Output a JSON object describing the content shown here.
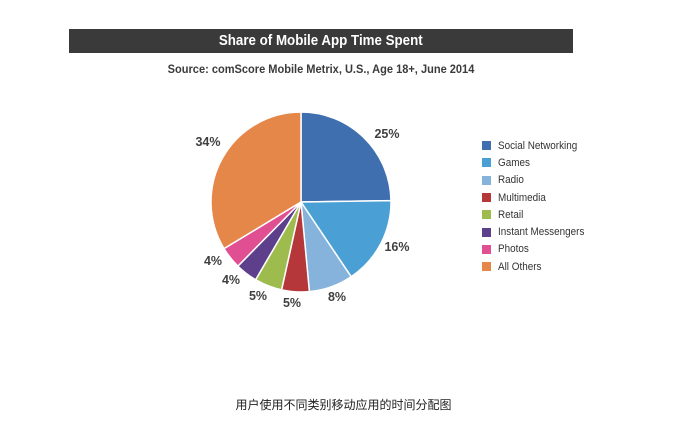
{
  "chart_data": {
    "type": "pie",
    "title": "Share of Mobile App Time Spent",
    "subtitle": "Source: comScore Mobile Metrix, U.S., Age 18+, June 2014",
    "slices": [
      {
        "name": "Social Networking",
        "value": 25,
        "label": "25%",
        "color": "#3f6fae"
      },
      {
        "name": "Games",
        "value": 16,
        "label": "16%",
        "color": "#4a9fd4"
      },
      {
        "name": "Radio",
        "value": 8,
        "label": "8%",
        "color": "#85b3dc"
      },
      {
        "name": "Multimedia",
        "value": 5,
        "label": "5%",
        "color": "#b5373a"
      },
      {
        "name": "Retail",
        "value": 5,
        "label": "5%",
        "color": "#9ebc4d"
      },
      {
        "name": "Instant Messengers",
        "value": 4,
        "label": "4%",
        "color": "#5e3f8c"
      },
      {
        "name": "Photos",
        "value": 4,
        "label": "4%",
        "color": "#df4f92"
      },
      {
        "name": "All Others",
        "value": 34,
        "label": "34%",
        "color": "#e6874a"
      }
    ],
    "legend_position": "right"
  },
  "caption": "用户使用不同类别移动应用的时间分配图"
}
